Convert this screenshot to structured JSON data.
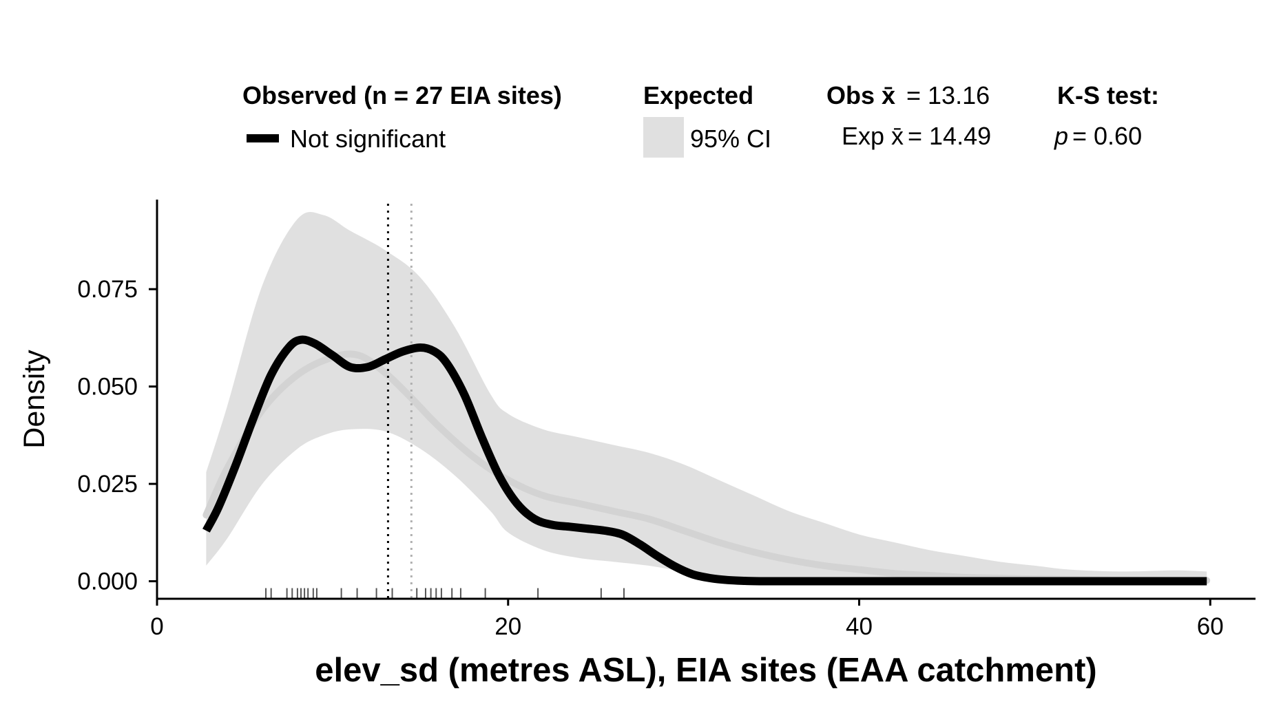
{
  "colors": {
    "observed_line": "#000000",
    "expected_line": "#d3d3d3",
    "ci_band": "#e0e0e0",
    "obs_mean_line": "#000000",
    "exp_mean_line": "#b0b0b0",
    "axis": "#000000",
    "rug": "#555555"
  },
  "legend": {
    "observed_title": "Observed (n = 27 EIA sites)",
    "observed_item": "Not significant",
    "expected_title": "Expected",
    "expected_item": "95% CI",
    "obs_mean_label": "Obs x̄",
    "obs_mean_value": "= 13.16",
    "exp_mean_label": "Exp x̄",
    "exp_mean_value": "= 14.49",
    "ks_title": "K-S test:",
    "ks_p_label": "p",
    "ks_p_value": "= 0.60"
  },
  "chart_data": {
    "type": "line",
    "xlabel": "elev_sd (metres ASL), EIA sites (EAA catchment)",
    "ylabel": "Density",
    "xlim": [
      0,
      62.5
    ],
    "ylim": [
      -0.0045,
      0.098
    ],
    "x_ticks": [
      0,
      20,
      40,
      60
    ],
    "x_tick_labels": [
      "0",
      "20",
      "40",
      "60"
    ],
    "y_ticks": [
      0,
      0.025,
      0.05,
      0.075
    ],
    "y_tick_labels": [
      "0.000",
      "0.025",
      "0.050",
      "0.075"
    ],
    "grid": false,
    "legend_position": "top",
    "observed_mean": 13.16,
    "expected_mean": 14.49,
    "series": [
      {
        "name": "Not significant",
        "role": "observed",
        "x": [
          2.8,
          3.5,
          4.5,
          5.5,
          6.5,
          7.5,
          8.2,
          9.0,
          10.0,
          11.0,
          12.0,
          13.0,
          14.0,
          15.0,
          15.8,
          16.5,
          17.5,
          18.5,
          19.5,
          20.5,
          21.5,
          22.5,
          23.5,
          24.5,
          25.5,
          26.5,
          27.5,
          28.5,
          29.5,
          30.5,
          31.5,
          32.5,
          33.5,
          34.5,
          35.5,
          37,
          40,
          45,
          50,
          55,
          59.8
        ],
        "y": [
          0.013,
          0.019,
          0.03,
          0.042,
          0.053,
          0.06,
          0.062,
          0.061,
          0.058,
          0.055,
          0.055,
          0.057,
          0.059,
          0.06,
          0.059,
          0.056,
          0.048,
          0.037,
          0.027,
          0.02,
          0.016,
          0.0145,
          0.014,
          0.0135,
          0.013,
          0.012,
          0.0095,
          0.0065,
          0.0038,
          0.0018,
          0.0008,
          0.0003,
          0.0001,
          0,
          0,
          0,
          0,
          0,
          0,
          0,
          0
        ]
      },
      {
        "name": "Expected",
        "role": "expected_mean",
        "x": [
          2.8,
          4,
          6,
          8,
          10,
          11.5,
          13,
          14.5,
          16,
          18,
          20,
          22,
          24,
          26,
          28,
          30,
          32,
          34,
          36,
          38,
          40,
          42,
          44,
          46,
          48,
          50,
          52,
          55,
          59.8
        ],
        "y": [
          0.017,
          0.029,
          0.044,
          0.053,
          0.0575,
          0.058,
          0.0535,
          0.047,
          0.04,
          0.032,
          0.026,
          0.022,
          0.02,
          0.018,
          0.016,
          0.013,
          0.01,
          0.0075,
          0.0055,
          0.004,
          0.003,
          0.002,
          0.0015,
          0.001,
          0.0008,
          0.0006,
          0.0005,
          0.0003,
          0.0002
        ]
      }
    ],
    "ci_band": {
      "name": "95% CI",
      "x": [
        2.8,
        4,
        6,
        8,
        9.5,
        11,
        13,
        15,
        17,
        19,
        20,
        22,
        24,
        26,
        28,
        30,
        32,
        34,
        36,
        38,
        40,
        42,
        44,
        46,
        48,
        50,
        52,
        55,
        58,
        59.8
      ],
      "lower": [
        0.004,
        0.011,
        0.025,
        0.034,
        0.0375,
        0.039,
        0.0385,
        0.034,
        0.027,
        0.018,
        0.0125,
        0.008,
        0.006,
        0.005,
        0.004,
        0.0025,
        0.0015,
        0.0008,
        0.0004,
        0.0002,
        0.0001,
        0,
        0,
        0,
        0,
        0,
        0,
        0,
        0,
        0
      ],
      "upper": [
        0.028,
        0.045,
        0.076,
        0.093,
        0.094,
        0.09,
        0.085,
        0.078,
        0.065,
        0.048,
        0.043,
        0.039,
        0.037,
        0.035,
        0.033,
        0.03,
        0.026,
        0.022,
        0.018,
        0.015,
        0.012,
        0.01,
        0.008,
        0.0065,
        0.005,
        0.004,
        0.003,
        0.0025,
        0.0028,
        0.0025
      ]
    },
    "rug": [
      6.2,
      6.5,
      7.4,
      7.7,
      8.0,
      8.2,
      8.4,
      8.6,
      8.9,
      9.1,
      10.5,
      11.4,
      12.5,
      13.4,
      14.8,
      15.3,
      15.6,
      15.9,
      16.2,
      16.8,
      17.3,
      18.7,
      21.7,
      25.3,
      26.6
    ]
  }
}
